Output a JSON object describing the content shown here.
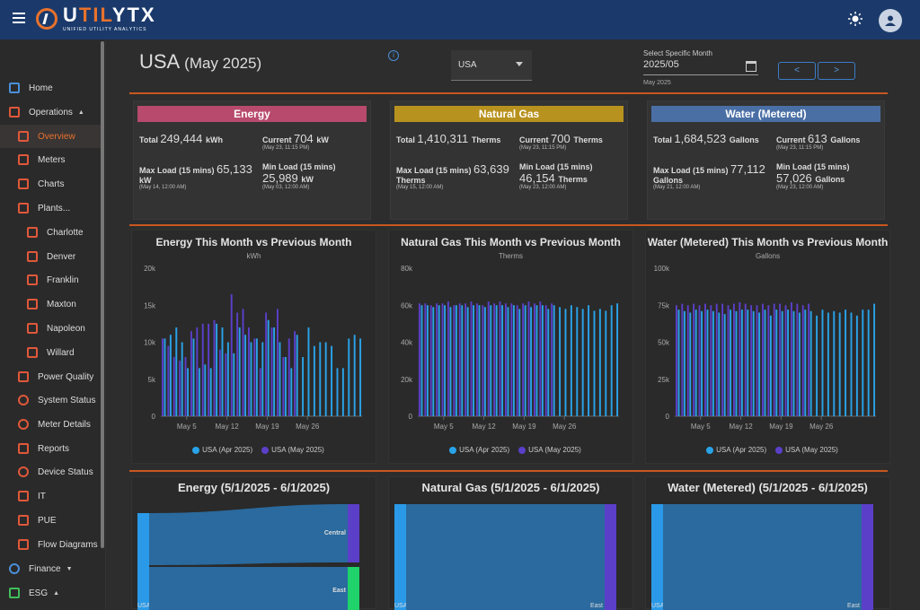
{
  "app": {
    "brand_prefix": "U",
    "brand_accent": "TIL",
    "brand_suffix": "YTX",
    "brand_sub": "UNIFIED UTILITY ANALYTICS"
  },
  "sidebar": {
    "items": [
      {
        "label": "Home",
        "icon": "home-icon",
        "top": 85
      },
      {
        "label": "Operations",
        "icon": "operations-icon",
        "top": 112,
        "caret": "▲"
      },
      {
        "label": "Overview",
        "icon": "overview-icon",
        "top": 139,
        "sub": 1,
        "active": true
      },
      {
        "label": "Meters",
        "icon": "meters-icon",
        "top": 165,
        "sub": 1
      },
      {
        "label": "Charts",
        "icon": "charts-icon",
        "top": 192,
        "sub": 1
      },
      {
        "label": "Plants...",
        "icon": "plants-icon",
        "top": 219,
        "sub": 1
      },
      {
        "label": "Charlotte",
        "icon": "factory-icon",
        "top": 246,
        "sub": 2
      },
      {
        "label": "Denver",
        "icon": "factory-icon",
        "top": 273,
        "sub": 2
      },
      {
        "label": "Franklin",
        "icon": "factory-icon",
        "top": 299,
        "sub": 2
      },
      {
        "label": "Maxton",
        "icon": "factory-icon",
        "top": 326,
        "sub": 2
      },
      {
        "label": "Napoleon",
        "icon": "factory-icon",
        "top": 353,
        "sub": 2
      },
      {
        "label": "Willard",
        "icon": "factory-icon",
        "top": 380,
        "sub": 2
      },
      {
        "label": "Power Quality",
        "icon": "power-quality-icon",
        "top": 407,
        "sub": 1
      },
      {
        "label": "System Status",
        "icon": "system-status-icon",
        "top": 433,
        "sub": 1
      },
      {
        "label": "Meter Details",
        "icon": "meter-details-icon",
        "top": 460,
        "sub": 1
      },
      {
        "label": "Reports",
        "icon": "reports-icon",
        "top": 487,
        "sub": 1
      },
      {
        "label": "Device Status",
        "icon": "device-status-icon",
        "top": 513,
        "sub": 1
      },
      {
        "label": "IT",
        "icon": "laptop-icon",
        "top": 540,
        "sub": 1
      },
      {
        "label": "PUE",
        "icon": "pue-icon",
        "top": 567,
        "sub": 1
      },
      {
        "label": "Flow Diagrams",
        "icon": "flow-icon",
        "top": 594,
        "sub": 1
      },
      {
        "label": "Finance",
        "icon": "finance-icon",
        "top": 621,
        "caret": "▼"
      },
      {
        "label": "ESG",
        "icon": "esg-icon",
        "top": 648,
        "caret": "▲"
      }
    ]
  },
  "header": {
    "title": "USA",
    "title_suffix": "(May 2025)",
    "region": "USA",
    "month_label": "Select Specific Month",
    "month_value": "2025/05",
    "month_help": "May 2025",
    "prev": "<",
    "next": ">"
  },
  "cards": [
    {
      "name": "energy",
      "title": "Energy",
      "color": "#b84a6e",
      "unit": "kW",
      "total_label": "Total",
      "total": "249,444",
      "total_unit": "kWh",
      "current_label": "Current",
      "current": "704",
      "current_sub": "(May 23, 11:15 PM)",
      "max_label": "Max Load (15 mins)",
      "max": "65,133",
      "max_sub": "(May 14, 12:00 AM)",
      "min_label": "Min Load (15 mins)",
      "min": "25,989",
      "min_sub": "(May 03, 12:00 AM)"
    },
    {
      "name": "natural-gas",
      "title": "Natural Gas",
      "color": "#b8921e",
      "unit": "Therms",
      "total_label": "Total",
      "total": "1,410,311",
      "total_unit": "Therms",
      "current_label": "Current",
      "current": "700",
      "current_sub": "(May 23, 11:15 PM)",
      "max_label": "Max Load (15 mins)",
      "max": "63,639",
      "max_sub": "(May 15, 12:00 AM)",
      "min_label": "Min Load (15 mins)",
      "min": "46,154",
      "min_sub": "(May 23, 12:00 AM)"
    },
    {
      "name": "water",
      "title": "Water (Metered)",
      "color": "#4a6fa5",
      "unit": "Gallons",
      "total_label": "Total",
      "total": "1,684,523",
      "total_unit": "Gallons",
      "current_label": "Current",
      "current": "613",
      "current_sub": "(May 23, 11:15 PM)",
      "max_label": "Max Load (15 mins)",
      "max": "77,112",
      "max_sub": "(May 21, 12:00 AM)",
      "min_label": "Min Load (15 mins)",
      "min": "57,026",
      "min_sub": "(May 23, 12:00 AM)"
    }
  ],
  "legend": {
    "s1": "USA (Apr 2025)",
    "s2": "USA (May 2025)"
  },
  "colors": {
    "apr": "#29a3e8",
    "may": "#5b3fc9"
  },
  "chart_data": [
    {
      "type": "bar",
      "title": "Energy This Month vs Previous Month",
      "ylabel": "kWh",
      "ylim": [
        0,
        20000
      ],
      "yticks": [
        "0",
        "5k",
        "10k",
        "15k",
        "20k"
      ],
      "xticks": [
        "May 5",
        "May 12",
        "May 19",
        "May 26"
      ],
      "series": [
        {
          "name": "USA (Apr 2025)",
          "values": [
            10500,
            11000,
            12000,
            10000,
            6500,
            10500,
            6500,
            7000,
            6500,
            12500,
            12000,
            10000,
            8500,
            12000,
            11000,
            10000,
            10500,
            10000,
            13000,
            12000,
            10000,
            8000,
            6500,
            11000,
            8000,
            12000,
            9500,
            10000,
            10000,
            9500,
            6500,
            6500,
            10500,
            11000,
            10500
          ]
        },
        {
          "name": "USA (May 2025)",
          "values": [
            10500,
            9500,
            8000,
            7500,
            8000,
            11500,
            12000,
            12500,
            12500,
            13000,
            9000,
            8500,
            16500,
            14000,
            14500,
            12000,
            10500,
            6500,
            14000,
            12000,
            14500,
            8000,
            10500,
            11500,
            0,
            0,
            0,
            0,
            0,
            0,
            0,
            0,
            0,
            0,
            0
          ]
        }
      ]
    },
    {
      "type": "bar",
      "title": "Natural Gas This Month vs Previous Month",
      "ylabel": "Therms",
      "ylim": [
        0,
        80000
      ],
      "yticks": [
        "0",
        "20k",
        "40k",
        "60k",
        "80k"
      ],
      "xticks": [
        "May 5",
        "May 12",
        "May 19",
        "May 26"
      ],
      "series": [
        {
          "name": "USA (Apr 2025)",
          "values": [
            60000,
            60000,
            59000,
            60000,
            60000,
            59000,
            60000,
            60000,
            59000,
            60000,
            60000,
            59000,
            60000,
            60000,
            60000,
            59000,
            60000,
            58000,
            60000,
            59000,
            60000,
            60000,
            58000,
            60000,
            59000,
            58000,
            60000,
            59000,
            58000,
            60000,
            57000,
            58000,
            57000,
            60000,
            61000
          ]
        },
        {
          "name": "USA (May 2025)",
          "values": [
            61000,
            61000,
            60000,
            61000,
            61000,
            62000,
            60000,
            61000,
            61000,
            62000,
            61000,
            60000,
            62000,
            61000,
            62000,
            61000,
            61000,
            60000,
            61000,
            62000,
            61000,
            62000,
            60000,
            61000,
            0,
            0,
            0,
            0,
            0,
            0,
            0,
            0,
            0,
            0,
            0
          ]
        }
      ]
    },
    {
      "type": "bar",
      "title": "Water (Metered) This Month vs Previous Month",
      "ylabel": "Gallons",
      "ylim": [
        0,
        100000
      ],
      "yticks": [
        "0",
        "25k",
        "50k",
        "75k",
        "100k"
      ],
      "xticks": [
        "May 5",
        "May 12",
        "May 19",
        "May 26"
      ],
      "series": [
        {
          "name": "USA (Apr 2025)",
          "values": [
            72000,
            71000,
            70000,
            72000,
            71000,
            72000,
            71000,
            70000,
            69000,
            72000,
            71000,
            72000,
            72000,
            71000,
            70000,
            72000,
            68000,
            72000,
            71000,
            72000,
            71000,
            70000,
            72000,
            71000,
            68000,
            72000,
            70000,
            71000,
            70000,
            72000,
            70000,
            68000,
            72000,
            72000,
            76000
          ]
        },
        {
          "name": "USA (May 2025)",
          "values": [
            75000,
            76000,
            75000,
            76000,
            75000,
            76000,
            75000,
            76000,
            76000,
            75000,
            76000,
            77000,
            76000,
            75000,
            75000,
            76000,
            75000,
            76000,
            76000,
            75000,
            77000,
            76000,
            75000,
            76000,
            0,
            0,
            0,
            0,
            0,
            0,
            0,
            0,
            0,
            0,
            0
          ]
        }
      ]
    }
  ],
  "sankeys": [
    {
      "title": "Energy (5/1/2025 - 6/1/2025)",
      "source": "USA",
      "targets": [
        {
          "label": "Central",
          "color": "#5b3fc9"
        },
        {
          "label": "East",
          "color": "#1fd26a"
        }
      ]
    },
    {
      "title": "Natural Gas (5/1/2025 - 6/1/2025)",
      "source": "USA",
      "targets": [
        {
          "label": "East",
          "color": "#5b3fc9"
        }
      ]
    },
    {
      "title": "Water (Metered) (5/1/2025 - 6/1/2025)",
      "source": "USA",
      "targets": [
        {
          "label": "East",
          "color": "#5b3fc9"
        }
      ]
    }
  ]
}
